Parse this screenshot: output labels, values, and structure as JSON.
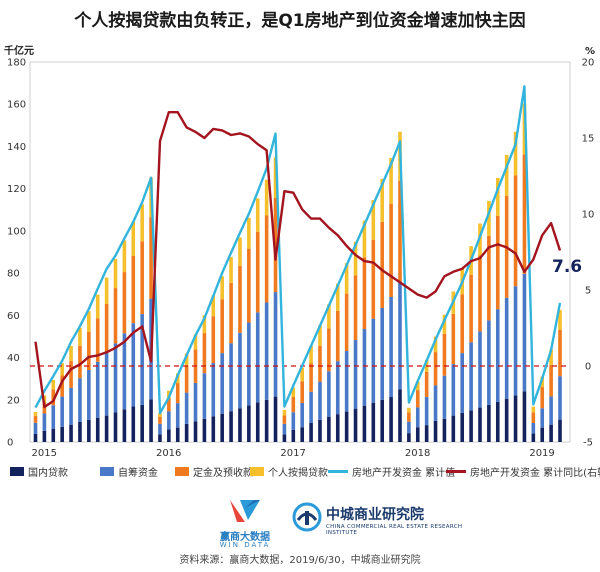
{
  "title": "个人按揭贷款由负转正，是Q1房地产到位资金增速加快主因",
  "source": "资料来源：赢商大数据，2019/6/30，中城商业研究院",
  "logos": {
    "winshang_name": "赢商大数据",
    "winshang_sub": "WIN DATA",
    "zhongcheng_name": "中城商业研究院",
    "zhongcheng_sub": "CHINA COMMERCIAL REAL ESTATE RESEARCH INSTITUTE"
  },
  "chart_data": {
    "type": "bar",
    "stacked": true,
    "left_axis_unit": "千亿元",
    "right_axis_unit": "%",
    "left_ylim": [
      0,
      180
    ],
    "left_ticks": [
      0,
      20,
      40,
      60,
      80,
      100,
      120,
      140,
      160,
      180
    ],
    "right_ylim": [
      -5,
      20
    ],
    "right_ticks": [
      -5,
      0,
      5,
      10,
      15,
      20
    ],
    "year_labels": [
      "2015",
      "2016",
      "2017",
      "2018",
      "2019"
    ],
    "annotation": "7.6",
    "colors": {
      "domestic_loans": "#14235e",
      "self_funding": "#4a78c8",
      "deposits_prepayments": "#f07a1f",
      "mortgage": "#f5c02c",
      "cumulative_value": "#32b4dc",
      "cumulative_yoy": "#a3141e",
      "zero_line": "#cc1111"
    },
    "series": [
      {
        "name": "国内贷款",
        "key": "domestic_loans",
        "role": "bar",
        "values": [
          3.8,
          5.3,
          6.3,
          7.2,
          8.2,
          9.5,
          10.5,
          11.5,
          12.5,
          14,
          15.5,
          16.8,
          17.6,
          20.2,
          3.6,
          6,
          6.8,
          8.6,
          9.8,
          11,
          12.2,
          13.4,
          14.6,
          16,
          17.4,
          18.8,
          20,
          21.5,
          3.6,
          5.8,
          7,
          9,
          10.5,
          12,
          13.2,
          14.4,
          15.8,
          17.2,
          18.6,
          20,
          21.3,
          25,
          4.2,
          7,
          8,
          10,
          11,
          12.5,
          13.8,
          15,
          16.3,
          17.6,
          19,
          20.5,
          22,
          24,
          4,
          6.8,
          8.2,
          10.6
        ]
      },
      {
        "name": "自筹资金",
        "key": "self_funding",
        "role": "bar",
        "values": [
          5.3,
          8.2,
          11.1,
          14.3,
          17.5,
          20.7,
          23.6,
          26.5,
          29.5,
          32.7,
          36,
          39.5,
          43,
          47.7,
          5,
          8.5,
          11.6,
          14.8,
          18.2,
          21.6,
          25.2,
          28.7,
          32.2,
          35.7,
          39.2,
          42.6,
          46.1,
          49.5,
          5,
          8.3,
          11.5,
          14.8,
          18.1,
          21.5,
          25.1,
          28.7,
          32.5,
          36.3,
          39.8,
          43.5,
          47.4,
          51,
          5.4,
          9.4,
          13.3,
          16.8,
          20.4,
          24.4,
          28.3,
          32.2,
          36.1,
          40,
          43.9,
          47.8,
          51.8,
          55.7,
          5,
          9.2,
          13.4,
          20.6
        ]
      },
      {
        "name": "定金及预收款",
        "key": "deposits_prepayments",
        "role": "bar",
        "values": [
          3.3,
          5.5,
          7.5,
          10,
          12.7,
          15.4,
          18,
          20.6,
          23.4,
          26.2,
          29,
          31.8,
          34.5,
          38.6,
          3.4,
          6.6,
          9.5,
          12.6,
          15.8,
          19,
          22.2,
          25.4,
          28.6,
          31.8,
          35,
          38.2,
          41.2,
          44.6,
          4,
          7.2,
          10.3,
          13.6,
          17,
          20.4,
          23.8,
          27.2,
          30.6,
          34,
          37.4,
          40.8,
          44.2,
          47.8,
          4.4,
          8.2,
          11.9,
          15.8,
          19.8,
          23.8,
          27.9,
          32,
          36,
          40,
          44.2,
          48.3,
          52.5,
          56.6,
          5,
          10,
          15,
          22
        ]
      },
      {
        "name": "个人按揭贷款",
        "key": "mortgage",
        "role": "bar",
        "values": [
          1.8,
          3.1,
          4.5,
          5.9,
          7.1,
          8.5,
          9.9,
          11.2,
          12.5,
          13.8,
          15,
          16.3,
          17.5,
          18.8,
          1.7,
          3.2,
          4.6,
          6,
          7.2,
          8.5,
          9.8,
          11,
          12.2,
          13.4,
          14.6,
          15.8,
          16.9,
          19.3,
          2.6,
          4.5,
          6.4,
          8.2,
          9.8,
          11.3,
          12.9,
          14.4,
          15.9,
          17.4,
          18.8,
          20.3,
          21.7,
          23.2,
          2.2,
          4,
          5.7,
          7.4,
          9.1,
          10.6,
          12.1,
          13.6,
          15.1,
          16.6,
          18,
          19.4,
          20.7,
          24,
          2.8,
          5,
          7.2,
          9.4
        ]
      },
      {
        "name": "房地产开发资金 累计值",
        "key": "cumulative_value",
        "role": "line-left",
        "values": [
          16.3,
          24.2,
          31.2,
          38.5,
          47.5,
          54.8,
          63,
          72.6,
          82,
          88.3,
          96.5,
          104.3,
          113.6,
          125.2,
          13.7,
          21.1,
          31.5,
          41,
          50.5,
          58.6,
          69.2,
          80.1,
          89.7,
          99.1,
          108.1,
          118.5,
          129.5,
          146.1,
          16.8,
          26.7,
          36.2,
          45.6,
          55.1,
          64.6,
          74.1,
          83.7,
          93.3,
          102.9,
          112.5,
          122.1,
          131.7,
          142.4,
          18.7,
          29,
          38.6,
          48.4,
          57.7,
          66.6,
          75.7,
          86.2,
          97.4,
          108.5,
          119.8,
          130.4,
          141.1,
          168.5,
          17.8,
          30.1,
          43.6,
          65.9
        ]
      },
      {
        "name": "房地产开发资金 累计同比(右轴)",
        "key": "cumulative_yoy",
        "role": "line-right",
        "values": [
          1.6,
          -2.7,
          -2.3,
          -1,
          -0.2,
          0.1,
          0.6,
          0.7,
          0.9,
          1.2,
          1.6,
          2.2,
          2.6,
          0.3,
          14.8,
          16.7,
          16.7,
          15.7,
          15.4,
          15,
          15.6,
          15.5,
          15.2,
          15.3,
          15.1,
          14.6,
          14.2,
          7,
          11.5,
          11.4,
          10.3,
          9.7,
          9.7,
          9.1,
          8.6,
          7.9,
          7.3,
          6.9,
          6.8,
          6.3,
          5.9,
          5.5,
          5.1,
          4.7,
          4.5,
          4.9,
          5.9,
          6.2,
          6.4,
          6.9,
          7.1,
          7.8,
          8,
          7.8,
          7.4,
          6.2,
          7,
          8.6,
          9.4,
          7.6
        ]
      }
    ]
  }
}
